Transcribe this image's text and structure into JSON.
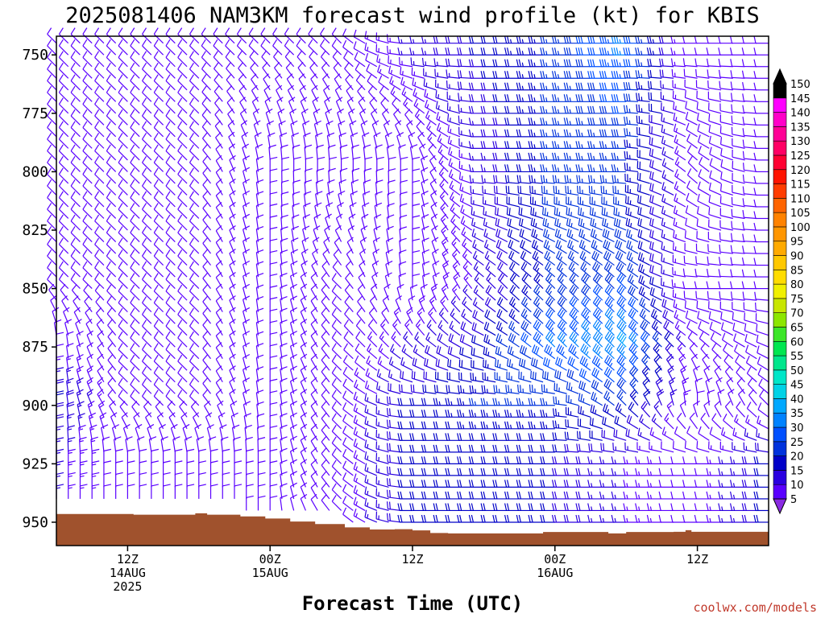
{
  "chart_data": {
    "type": "wind-barb-profile",
    "title": "2025081406 NAM3KM forecast wind profile (kt) for KBIS",
    "xlabel": "Forecast Time (UTC)",
    "y_ticks": [
      750,
      775,
      800,
      825,
      850,
      875,
      900,
      925,
      950
    ],
    "ylim": [
      960,
      742
    ],
    "x_ticks": [
      {
        "h": 6,
        "lines": [
          "12Z",
          "14AUG",
          "2025"
        ]
      },
      {
        "h": 18,
        "lines": [
          "00Z",
          "15AUG"
        ]
      },
      {
        "h": 30,
        "lines": [
          "12Z"
        ]
      },
      {
        "h": 42,
        "lines": [
          "00Z",
          "16AUG"
        ]
      },
      {
        "h": 54,
        "lines": [
          "12Z"
        ]
      }
    ],
    "xlim": [
      0,
      60
    ],
    "colorbar": {
      "levels": [
        5,
        10,
        15,
        20,
        25,
        30,
        35,
        40,
        45,
        50,
        55,
        60,
        65,
        70,
        75,
        80,
        85,
        90,
        95,
        100,
        105,
        110,
        115,
        120,
        125,
        130,
        135,
        140,
        145,
        150
      ],
      "colors": [
        "#8a2be2",
        "#5a00ff",
        "#2b00e0",
        "#0000c8",
        "#0032dc",
        "#0050ff",
        "#0082ff",
        "#00a8ff",
        "#00d2e6",
        "#00e6c8",
        "#00e68c",
        "#00e650",
        "#3ce628",
        "#8ce600",
        "#c8e600",
        "#f0f000",
        "#ffdc00",
        "#ffc800",
        "#ffaa00",
        "#ff9600",
        "#ff8200",
        "#ff6400",
        "#ff3c00",
        "#ff1400",
        "#ff0032",
        "#ff0064",
        "#ff0096",
        "#ff00c8",
        "#ff00ff",
        "#000000"
      ]
    },
    "terrain_color": "#a0522d",
    "terrain_hpa": [
      [
        0,
        946.5
      ],
      [
        6.5,
        946.8
      ],
      [
        11.7,
        946.2
      ],
      [
        12.7,
        946.8
      ],
      [
        15.5,
        947.5
      ],
      [
        17.6,
        948.4
      ],
      [
        19.7,
        949.7
      ],
      [
        21.8,
        950.8
      ],
      [
        24.3,
        952.2
      ],
      [
        26.4,
        953.1
      ],
      [
        28.5,
        953
      ],
      [
        30,
        953.5
      ],
      [
        31.5,
        954.6
      ],
      [
        33,
        954.8
      ],
      [
        40.7,
        954.8
      ],
      [
        41,
        954.2
      ],
      [
        45,
        954.2
      ],
      [
        46.5,
        954.8
      ],
      [
        48,
        954.2
      ],
      [
        52,
        954.1
      ],
      [
        53,
        953.4
      ],
      [
        53.5,
        954.1
      ],
      [
        58.6,
        954.1
      ],
      [
        60,
        955
      ]
    ],
    "wind_profiles": [
      {
        "h": 0,
        "rows": [
          [
            750,
            "NW",
            10
          ],
          [
            800,
            "NW",
            10
          ],
          [
            850,
            "NW",
            10
          ],
          [
            875,
            "N",
            10
          ],
          [
            900,
            "N",
            20
          ],
          [
            925,
            "N",
            15
          ]
        ]
      },
      {
        "h": 6,
        "rows": [
          [
            750,
            "NW",
            10
          ],
          [
            800,
            "NW",
            10
          ],
          [
            850,
            "NW",
            10
          ],
          [
            900,
            "NW",
            10
          ],
          [
            925,
            "N",
            10
          ]
        ]
      },
      {
        "h": 12,
        "rows": [
          [
            750,
            "NW",
            10
          ],
          [
            800,
            "NW",
            10
          ],
          [
            850,
            "NW",
            10
          ],
          [
            900,
            "NW",
            10
          ],
          [
            925,
            "N",
            10
          ]
        ]
      },
      {
        "h": 18,
        "rows": [
          [
            750,
            "NW",
            10
          ],
          [
            800,
            "N",
            10
          ],
          [
            850,
            "N",
            10
          ],
          [
            900,
            "N",
            10
          ],
          [
            925,
            "N",
            10
          ]
        ]
      },
      {
        "h": 24,
        "rows": [
          [
            750,
            "NW",
            10
          ],
          [
            800,
            "N",
            10
          ],
          [
            850,
            "NW",
            10
          ],
          [
            900,
            "NW",
            10
          ],
          [
            925,
            "NW",
            10
          ]
        ]
      },
      {
        "h": 30,
        "rows": [
          [
            750,
            "W",
            15
          ],
          [
            800,
            "N",
            10
          ],
          [
            850,
            "N",
            10
          ],
          [
            900,
            "W",
            20
          ],
          [
            925,
            "W",
            20
          ]
        ]
      },
      {
        "h": 36,
        "rows": [
          [
            750,
            "W",
            20
          ],
          [
            800,
            "W",
            15
          ],
          [
            850,
            "NW",
            15
          ],
          [
            900,
            "W",
            25
          ],
          [
            925,
            "W",
            20
          ]
        ]
      },
      {
        "h": 42,
        "rows": [
          [
            750,
            "W",
            25
          ],
          [
            800,
            "W",
            25
          ],
          [
            850,
            "NW",
            25
          ],
          [
            875,
            "NW",
            35
          ],
          [
            900,
            "W",
            25
          ],
          [
            925,
            "W",
            20
          ]
        ]
      },
      {
        "h": 48,
        "rows": [
          [
            750,
            "W",
            35
          ],
          [
            800,
            "W",
            25
          ],
          [
            850,
            "NW",
            30
          ],
          [
            875,
            "NW",
            40
          ],
          [
            900,
            "NW",
            25
          ],
          [
            925,
            "W",
            15
          ]
        ]
      },
      {
        "h": 54,
        "rows": [
          [
            750,
            "W",
            10
          ],
          [
            800,
            "NW",
            10
          ],
          [
            850,
            "W",
            10
          ],
          [
            900,
            "N",
            10
          ],
          [
            925,
            "W",
            10
          ]
        ]
      },
      {
        "h": 60,
        "rows": [
          [
            750,
            "W",
            10
          ],
          [
            800,
            "W",
            10
          ],
          [
            850,
            "W",
            10
          ],
          [
            900,
            "NW",
            10
          ],
          [
            925,
            "W",
            20
          ]
        ]
      }
    ]
  },
  "credit": "coolwx.com/models"
}
